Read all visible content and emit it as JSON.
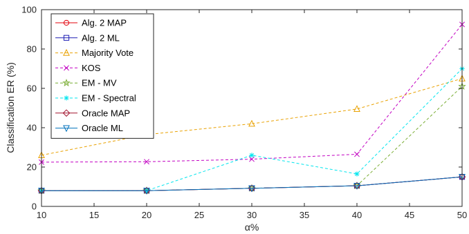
{
  "chart_data": {
    "type": "line",
    "xlabel": "α%",
    "ylabel": "Classification ER (%)",
    "xlim": [
      10,
      50
    ],
    "ylim": [
      0,
      100
    ],
    "xticks": [
      10,
      15,
      20,
      25,
      30,
      35,
      40,
      45,
      50
    ],
    "yticks": [
      0,
      20,
      40,
      60,
      80,
      100
    ],
    "grid": false,
    "legend_position": "top-left",
    "x": [
      10,
      20,
      30,
      40,
      50
    ],
    "series": [
      {
        "name": "Alg. 2 MAP",
        "values": [
          8.0,
          8.0,
          9.2,
          10.5,
          15.0
        ],
        "color": "#e3000b",
        "marker": "circle",
        "dash": "solid"
      },
      {
        "name": "Alg. 2 ML",
        "values": [
          8.0,
          8.0,
          9.2,
          10.5,
          15.0
        ],
        "color": "#1f1fb4",
        "marker": "square",
        "dash": "solid"
      },
      {
        "name": "Majority Vote",
        "values": [
          26.0,
          36.5,
          42.0,
          49.5,
          65.0
        ],
        "color": "#e9a100",
        "marker": "triangle-up",
        "dash": "dashed"
      },
      {
        "name": "KOS",
        "values": [
          22.5,
          22.7,
          24.0,
          26.5,
          92.5
        ],
        "color": "#c200c2",
        "marker": "x",
        "dash": "dashed"
      },
      {
        "name": "EM - MV",
        "values": [
          8.0,
          8.0,
          9.2,
          10.5,
          61.0
        ],
        "color": "#77ac30",
        "marker": "star",
        "dash": "dashed"
      },
      {
        "name": "EM - Spectral",
        "values": [
          8.0,
          8.0,
          26.0,
          16.5,
          70.0
        ],
        "color": "#00e5ee",
        "marker": "asterisk",
        "dash": "dashed"
      },
      {
        "name": "Oracle MAP",
        "values": [
          8.0,
          8.0,
          9.2,
          10.5,
          15.0
        ],
        "color": "#a2142f",
        "marker": "diamond",
        "dash": "solid"
      },
      {
        "name": "Oracle ML",
        "values": [
          8.0,
          8.0,
          9.2,
          10.5,
          15.0
        ],
        "color": "#0072bd",
        "marker": "triangle-down",
        "dash": "solid"
      }
    ]
  }
}
